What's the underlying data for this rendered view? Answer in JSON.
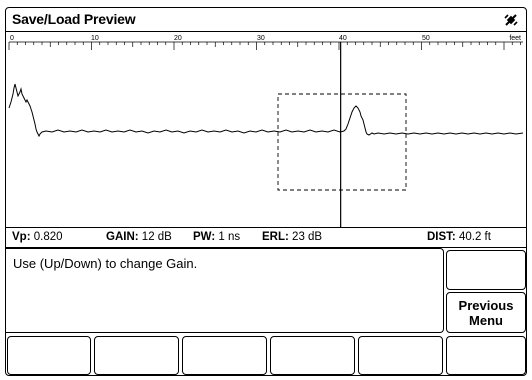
{
  "window": {
    "title": "Save/Load Preview",
    "title_icon": "lightning-plug-icon"
  },
  "trace": {
    "scale_labels": [
      "0",
      "10",
      "20",
      "30",
      "40",
      "50"
    ],
    "unit_label": "feet",
    "cursor_position_ft": 40.2
  },
  "status": {
    "vp_label": "Vp:",
    "vp_value": "0.820",
    "gain_label": "GAIN:",
    "gain_value": "12 dB",
    "pw_label": "PW:",
    "pw_value": "1 ns",
    "erl_label": "ERL:",
    "erl_value": "23 dB",
    "dist_label": "DIST:",
    "dist_value": "40.2 ft"
  },
  "message": "Use (Up/Down) to change Gain.",
  "right_softkeys": [
    {
      "label": ""
    },
    {
      "label": "Previous\nMenu"
    }
  ],
  "bottom_softkeys": [
    {
      "label": ""
    },
    {
      "label": ""
    },
    {
      "label": ""
    },
    {
      "label": ""
    },
    {
      "label": ""
    },
    {
      "label": ""
    }
  ]
}
